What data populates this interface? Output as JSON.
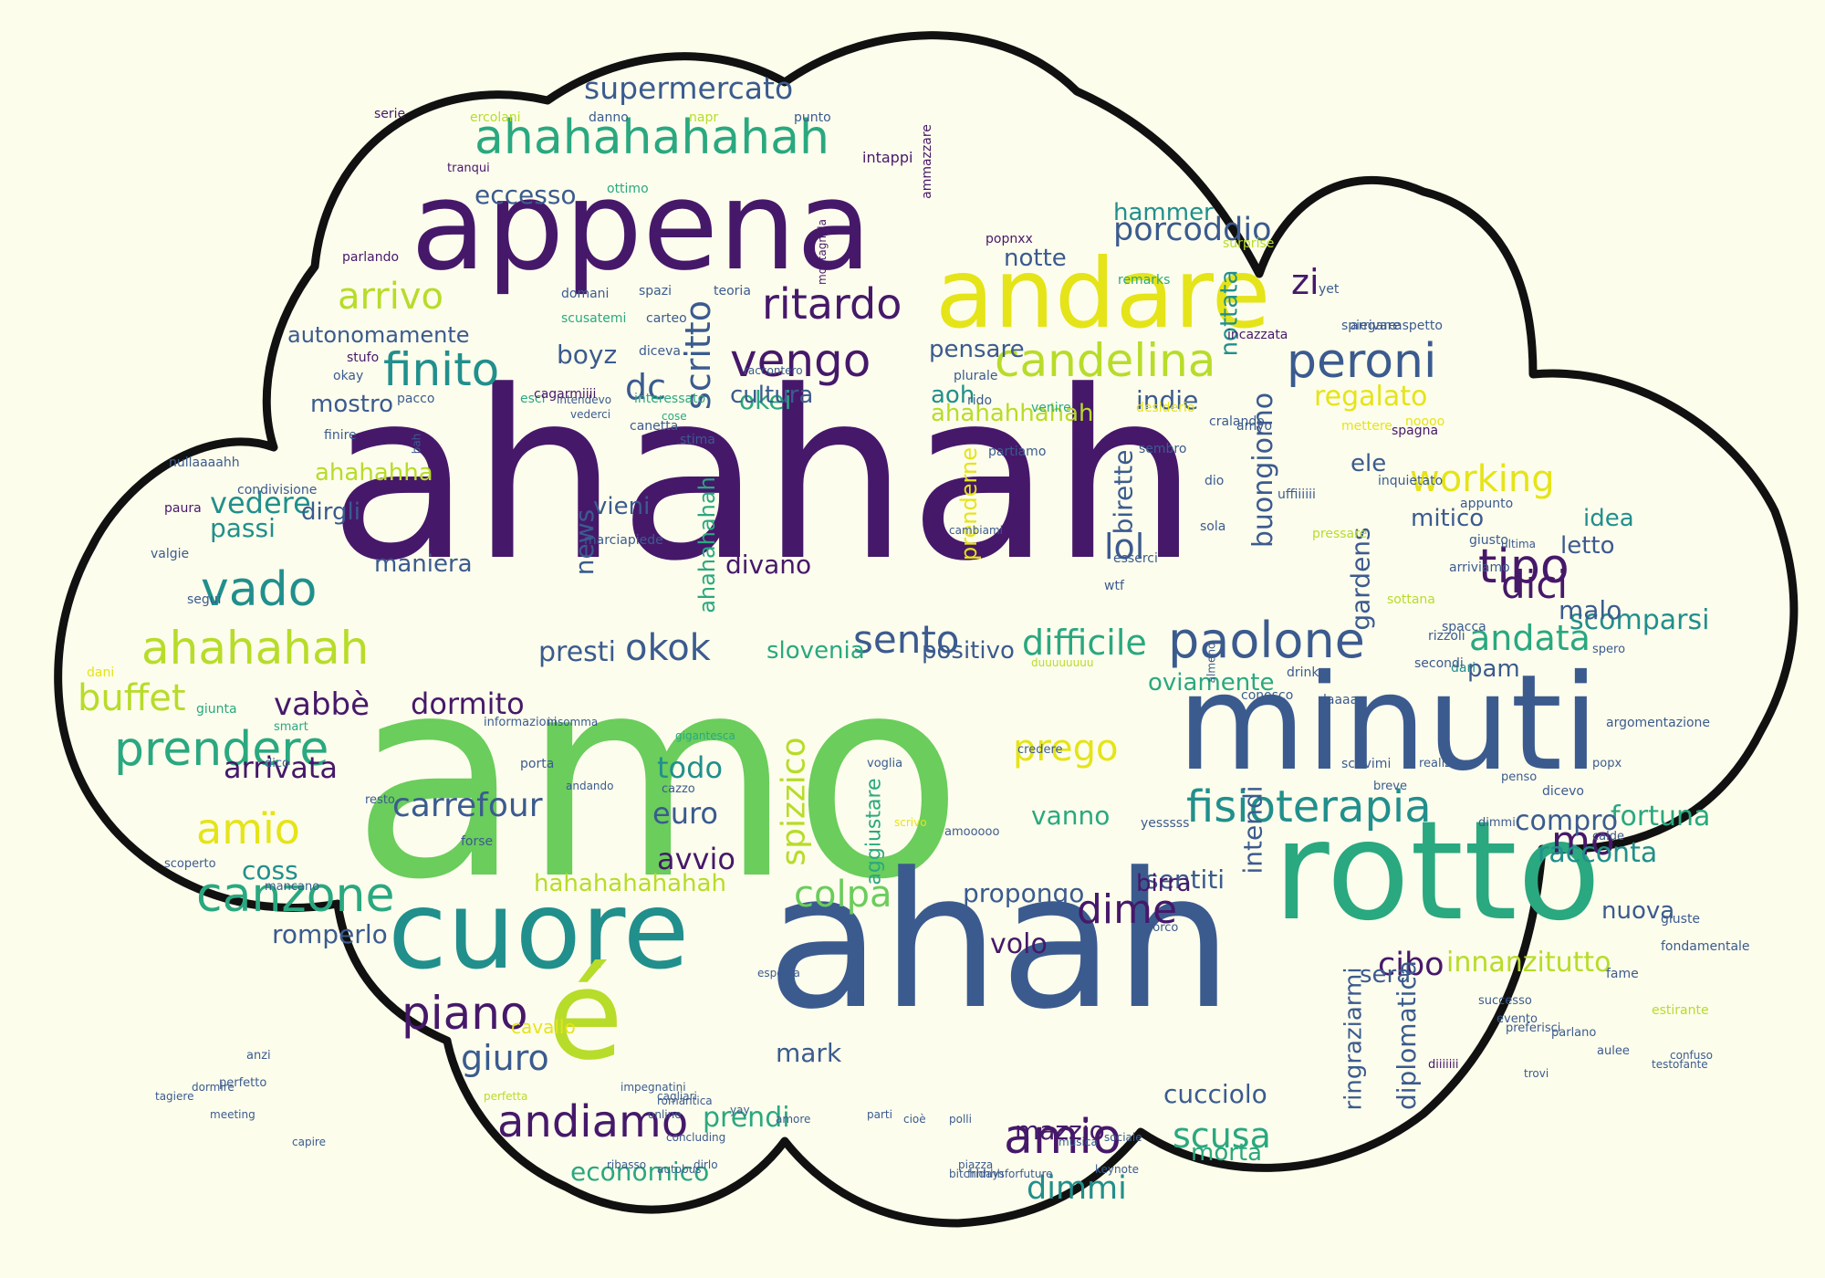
{
  "colors": {
    "background": "#fdfdec",
    "cloud_fill": "#fdfded",
    "cloud_outline": "#111111",
    "palette": [
      "#46186a",
      "#3b5b8f",
      "#218f8c",
      "#2aa880",
      "#6acd5c",
      "#b7dc29",
      "#e5e418",
      "#4a2d7c"
    ]
  },
  "words": [
    {
      "text": "amo",
      "c": "#6acd5c"
    },
    {
      "text": "ahahah",
      "c": "#46186a"
    },
    {
      "text": "ahah",
      "c": "#3b5b8f"
    },
    {
      "text": "appena",
      "c": "#46186a"
    },
    {
      "text": "minuti",
      "c": "#3b5b8f"
    },
    {
      "text": "rotto",
      "c": "#2aa880"
    },
    {
      "text": "cuore",
      "c": "#218f8c"
    },
    {
      "text": "andare",
      "c": "#e5e418"
    },
    {
      "text": "é",
      "c": "#b7dc29"
    },
    {
      "text": "ahahahahahah",
      "c": "#2aa880"
    },
    {
      "text": "candelina",
      "c": "#b7dc29"
    },
    {
      "text": "paolone",
      "c": "#3b5b8f"
    },
    {
      "text": "fisioterapia",
      "c": "#218f8c"
    },
    {
      "text": "ritardo",
      "c": "#46186a"
    },
    {
      "text": "ahahahah",
      "c": "#b7dc29"
    },
    {
      "text": "prendere",
      "c": "#2aa880"
    },
    {
      "text": "canzone",
      "c": "#2aa880"
    },
    {
      "text": "andiamo",
      "c": "#46186a"
    },
    {
      "text": "amio",
      "c": "#46186a"
    },
    {
      "text": "peroni",
      "c": "#3b5b8f"
    },
    {
      "text": "finito",
      "c": "#218f8c"
    },
    {
      "text": "vengo",
      "c": "#46186a"
    },
    {
      "text": "vado",
      "c": "#218f8c"
    },
    {
      "text": "tipo",
      "c": "#46186a"
    },
    {
      "text": "working",
      "c": "#e5e418"
    },
    {
      "text": "scritto",
      "c": "#3b5b8f"
    },
    {
      "text": "supermercato",
      "c": "#3b5b8f"
    },
    {
      "text": "porcoddio",
      "c": "#3b5b8f"
    },
    {
      "text": "piano",
      "c": "#46186a"
    },
    {
      "text": "arrivo",
      "c": "#b7dc29"
    },
    {
      "text": "okok",
      "c": "#3b5b8f"
    },
    {
      "text": "buffet",
      "c": "#b7dc29"
    },
    {
      "text": "sento",
      "c": "#3b5b8f"
    },
    {
      "text": "dici",
      "c": "#46186a"
    },
    {
      "text": "andata",
      "c": "#2aa880"
    },
    {
      "text": "colpa",
      "c": "#6acd5c"
    },
    {
      "text": "dime",
      "c": "#46186a"
    },
    {
      "text": "scusa",
      "c": "#2aa880"
    },
    {
      "text": "dimmi",
      "c": "#218f8c"
    },
    {
      "text": "giuro",
      "c": "#3b5b8f"
    },
    {
      "text": "amïo",
      "c": "#e5e418"
    },
    {
      "text": "mo",
      "c": "#46186a"
    },
    {
      "text": "cibo",
      "c": "#46186a"
    },
    {
      "text": "innanzitutto",
      "c": "#b7dc29"
    },
    {
      "text": "difficile",
      "c": "#2aa880"
    },
    {
      "text": "prego",
      "c": "#e5e418"
    },
    {
      "text": "spizzico",
      "c": "#b7dc29"
    },
    {
      "text": "lol",
      "c": "#3b5b8f"
    },
    {
      "text": "buongiorno",
      "c": "#3b5b8f"
    },
    {
      "text": "dc",
      "c": "#3b5b8f"
    },
    {
      "text": "zi",
      "c": "#46186a"
    },
    {
      "text": "vedere",
      "c": "#218f8c"
    },
    {
      "text": "ahahahhahah",
      "c": "#b7dc29"
    },
    {
      "text": "ahahahha",
      "c": "#b7dc29"
    },
    {
      "text": "aoh",
      "c": "#218f8c"
    },
    {
      "text": "prenderne",
      "c": "#e5e418"
    },
    {
      "text": "regalato",
      "c": "#e5e418"
    },
    {
      "text": "gardens",
      "c": "#3b5b8f"
    },
    {
      "text": "scomparsi",
      "c": "#218f8c"
    },
    {
      "text": "racconta",
      "c": "#218f8c"
    },
    {
      "text": "fortuna",
      "c": "#2aa880"
    },
    {
      "text": "compro",
      "c": "#3b5b8f"
    },
    {
      "text": "carrefour",
      "c": "#3b5b8f"
    },
    {
      "text": "arrivata",
      "c": "#46186a"
    },
    {
      "text": "euro",
      "c": "#3b5b8f"
    },
    {
      "text": "avvio",
      "c": "#46186a"
    },
    {
      "text": "todo",
      "c": "#218f8c"
    },
    {
      "text": "presti",
      "c": "#3b5b8f"
    },
    {
      "text": "eccesso",
      "c": "#3b5b8f"
    },
    {
      "text": "okei",
      "c": "#2aa880"
    },
    {
      "text": "divano",
      "c": "#46186a"
    },
    {
      "text": "news",
      "c": "#3b5b8f"
    },
    {
      "text": "boyz",
      "c": "#3b5b8f"
    },
    {
      "text": "cultura",
      "c": "#3b5b8f"
    },
    {
      "text": "pensare",
      "c": "#3b5b8f"
    },
    {
      "text": "notte",
      "c": "#3b5b8f"
    },
    {
      "text": "hammer",
      "c": "#218f8c"
    },
    {
      "text": "nottata",
      "c": "#218f8c"
    },
    {
      "text": "indie",
      "c": "#3b5b8f"
    },
    {
      "text": "birette",
      "c": "#3b5b8f"
    },
    {
      "text": "mitico",
      "c": "#3b5b8f"
    },
    {
      "text": "idea",
      "c": "#218f8c"
    },
    {
      "text": "letto",
      "c": "#3b5b8f"
    },
    {
      "text": "malo",
      "c": "#3b5b8f"
    },
    {
      "text": "pam",
      "c": "#3b5b8f"
    },
    {
      "text": "ele",
      "c": "#3b5b8f"
    },
    {
      "text": "oviamente",
      "c": "#2aa880"
    },
    {
      "text": "positivo",
      "c": "#3b5b8f"
    },
    {
      "text": "slovenia",
      "c": "#2aa880"
    },
    {
      "text": "dormito",
      "c": "#46186a"
    },
    {
      "text": "vabbè",
      "c": "#46186a"
    },
    {
      "text": "maniera",
      "c": "#3b5b8f"
    },
    {
      "text": "passi",
      "c": "#218f8c"
    },
    {
      "text": "dirgli",
      "c": "#3b5b8f"
    },
    {
      "text": "mostro",
      "c": "#3b5b8f"
    },
    {
      "text": "autonomamente",
      "c": "#3b5b8f"
    },
    {
      "text": "vieni",
      "c": "#3b5b8f"
    },
    {
      "text": "coss",
      "c": "#218f8c"
    },
    {
      "text": "romperlo",
      "c": "#3b5b8f"
    },
    {
      "text": "volo",
      "c": "#46186a"
    },
    {
      "text": "propongo",
      "c": "#3b5b8f"
    },
    {
      "text": "vanno",
      "c": "#2aa880"
    },
    {
      "text": "sentiti",
      "c": "#3b5b8f"
    },
    {
      "text": "birra",
      "c": "#46186a"
    },
    {
      "text": "intendi",
      "c": "#3b5b8f"
    },
    {
      "text": "nuova",
      "c": "#3b5b8f"
    },
    {
      "text": "sera",
      "c": "#3b5b8f"
    },
    {
      "text": "diplomatica",
      "c": "#3b5b8f"
    },
    {
      "text": "ringraziarmi",
      "c": "#3b5b8f"
    },
    {
      "text": "cucciolo",
      "c": "#3b5b8f"
    },
    {
      "text": "mazzio",
      "c": "#46186a"
    },
    {
      "text": "morta",
      "c": "#2aa880"
    },
    {
      "text": "prendi",
      "c": "#2aa880"
    },
    {
      "text": "economico",
      "c": "#2aa880"
    },
    {
      "text": "mark",
      "c": "#3b5b8f"
    },
    {
      "text": "hahahahahahah",
      "c": "#b7dc29"
    },
    {
      "text": "aggiustare",
      "c": "#2aa880"
    },
    {
      "text": "ahahahahah",
      "c": "#2aa880"
    },
    {
      "text": "cavallo",
      "c": "#e5e418"
    },
    {
      "text": "serie",
      "c": "#46186a"
    },
    {
      "text": "ercolani",
      "c": "#b7dc29"
    },
    {
      "text": "danno",
      "c": "#3b5b8f"
    },
    {
      "text": "napr",
      "c": "#b7dc29"
    },
    {
      "text": "punto",
      "c": "#3b5b8f"
    },
    {
      "text": "ottimo",
      "c": "#2aa880"
    },
    {
      "text": "intappi",
      "c": "#46186a"
    },
    {
      "text": "tranqui",
      "c": "#46186a"
    },
    {
      "text": "montagnola",
      "c": "#46186a"
    },
    {
      "text": "ammazzare",
      "c": "#46186a"
    },
    {
      "text": "parlando",
      "c": "#46186a"
    },
    {
      "text": "popnxx",
      "c": "#46186a"
    },
    {
      "text": "remarks",
      "c": "#2aa880"
    },
    {
      "text": "surprise",
      "c": "#b7dc29"
    },
    {
      "text": "yet",
      "c": "#3b5b8f"
    },
    {
      "text": "arrivare",
      "c": "#3b5b8f"
    },
    {
      "text": "spiegare",
      "c": "#3b5b8f"
    },
    {
      "text": "aspetto",
      "c": "#3b5b8f"
    },
    {
      "text": "incazzata",
      "c": "#46186a"
    },
    {
      "text": "domani",
      "c": "#3b5b8f"
    },
    {
      "text": "spazi",
      "c": "#3b5b8f"
    },
    {
      "text": "teoria",
      "c": "#3b5b8f"
    },
    {
      "text": "scusatemi",
      "c": "#2aa880"
    },
    {
      "text": "carteo",
      "c": "#3b5b8f"
    },
    {
      "text": "diceva",
      "c": "#3b5b8f"
    },
    {
      "text": "stufo",
      "c": "#46186a"
    },
    {
      "text": "okay",
      "c": "#3b5b8f"
    },
    {
      "text": "pacco",
      "c": "#3b5b8f"
    },
    {
      "text": "esci",
      "c": "#2aa880"
    },
    {
      "text": "interessato",
      "c": "#2aa880"
    },
    {
      "text": "raccontero",
      "c": "#3b5b8f"
    },
    {
      "text": "intendevo",
      "c": "#3b5b8f"
    },
    {
      "text": "cose",
      "c": "#2aa880"
    },
    {
      "text": "vederci",
      "c": "#3b5b8f"
    },
    {
      "text": "plurale",
      "c": "#3b5b8f"
    },
    {
      "text": "rido",
      "c": "#3b5b8f"
    },
    {
      "text": "venire",
      "c": "#2aa880"
    },
    {
      "text": "desiderio",
      "c": "#e5e418"
    },
    {
      "text": "cralando",
      "c": "#3b5b8f"
    },
    {
      "text": "amyo",
      "c": "#3b5b8f"
    },
    {
      "text": "mettere",
      "c": "#e5e418"
    },
    {
      "text": "spagna",
      "c": "#46186a"
    },
    {
      "text": "noooo",
      "c": "#e5e418"
    },
    {
      "text": "finire",
      "c": "#3b5b8f"
    },
    {
      "text": "bah",
      "c": "#3b5b8f"
    },
    {
      "text": "cagarmiiii",
      "c": "#46186a"
    },
    {
      "text": "stima",
      "c": "#3b5b8f"
    },
    {
      "text": "canetta",
      "c": "#3b5b8f"
    },
    {
      "text": "partiamo",
      "c": "#3b5b8f"
    },
    {
      "text": "sembro",
      "c": "#3b5b8f"
    },
    {
      "text": "dio",
      "c": "#3b5b8f"
    },
    {
      "text": "uffiiiiii",
      "c": "#3b5b8f"
    },
    {
      "text": "pressare",
      "c": "#b7dc29"
    },
    {
      "text": "inquietato",
      "c": "#3b5b8f"
    },
    {
      "text": "appunto",
      "c": "#3b5b8f"
    },
    {
      "text": "paura",
      "c": "#46186a"
    },
    {
      "text": "condivisione",
      "c": "#3b5b8f"
    },
    {
      "text": "nullaaaahh",
      "c": "#3b5b8f"
    },
    {
      "text": "segui",
      "c": "#3b5b8f"
    },
    {
      "text": "valgie",
      "c": "#3b5b8f"
    },
    {
      "text": "marciapiede",
      "c": "#3b5b8f"
    },
    {
      "text": "cambiami",
      "c": "#3b5b8f"
    },
    {
      "text": "esserci",
      "c": "#3b5b8f"
    },
    {
      "text": "wtf",
      "c": "#3b5b8f"
    },
    {
      "text": "sola",
      "c": "#3b5b8f"
    },
    {
      "text": "giusto",
      "c": "#3b5b8f"
    },
    {
      "text": "arriviamo",
      "c": "#3b5b8f"
    },
    {
      "text": "ultima",
      "c": "#3b5b8f"
    },
    {
      "text": "spacca",
      "c": "#3b5b8f"
    },
    {
      "text": "sottana",
      "c": "#b7dc29"
    },
    {
      "text": "spero",
      "c": "#3b5b8f"
    },
    {
      "text": "drinks",
      "c": "#3b5b8f"
    },
    {
      "text": "conosco",
      "c": "#3b5b8f"
    },
    {
      "text": "dari",
      "c": "#218f8c"
    },
    {
      "text": "laaaaa",
      "c": "#3b5b8f"
    },
    {
      "text": "secondi",
      "c": "#3b5b8f"
    },
    {
      "text": "rizzoli",
      "c": "#3b5b8f"
    },
    {
      "text": "dani",
      "c": "#e5e418"
    },
    {
      "text": "giunta",
      "c": "#2aa880"
    },
    {
      "text": "smart",
      "c": "#2aa880"
    },
    {
      "text": "credere",
      "c": "#3b5b8f"
    },
    {
      "text": "porta",
      "c": "#3b5b8f"
    },
    {
      "text": "cazzo",
      "c": "#3b5b8f"
    },
    {
      "text": "forse",
      "c": "#3b5b8f"
    },
    {
      "text": "resto",
      "c": "#3b5b8f"
    },
    {
      "text": "voglia",
      "c": "#3b5b8f"
    },
    {
      "text": "scrivimi",
      "c": "#3b5b8f"
    },
    {
      "text": "realizzare",
      "c": "#3b5b8f"
    },
    {
      "text": "breve",
      "c": "#3b5b8f"
    },
    {
      "text": "dicevo",
      "c": "#3b5b8f"
    },
    {
      "text": "argomentazione",
      "c": "#3b5b8f"
    },
    {
      "text": "scoperto",
      "c": "#3b5b8f"
    },
    {
      "text": "dico",
      "c": "#3b5b8f"
    },
    {
      "text": "duuuuuuuu",
      "c": "#b7dc29"
    },
    {
      "text": "esposta",
      "c": "#3b5b8f"
    },
    {
      "text": "andando",
      "c": "#3b5b8f"
    },
    {
      "text": "gigantesca",
      "c": "#2aa880"
    },
    {
      "text": "almeno",
      "c": "#3b5b8f"
    },
    {
      "text": "porco",
      "c": "#3b5b8f"
    },
    {
      "text": "yesssss",
      "c": "#3b5b8f"
    },
    {
      "text": "insomma",
      "c": "#3b5b8f"
    },
    {
      "text": "informazioni",
      "c": "#3b5b8f"
    },
    {
      "text": "scrivo",
      "c": "#e5e418"
    },
    {
      "text": "amooooo",
      "c": "#3b5b8f"
    },
    {
      "text": "mancano",
      "c": "#3b5b8f"
    },
    {
      "text": "dimmi",
      "c": "#3b5b8f"
    },
    {
      "text": "penso",
      "c": "#3b5b8f"
    },
    {
      "text": "popx",
      "c": "#3b5b8f"
    },
    {
      "text": "calde",
      "c": "#3b5b8f"
    },
    {
      "text": "diiiiiii",
      "c": "#46186a"
    },
    {
      "text": "successo",
      "c": "#3b5b8f"
    },
    {
      "text": "evento",
      "c": "#3b5b8f"
    },
    {
      "text": "preferisci",
      "c": "#3b5b8f"
    },
    {
      "text": "parlano",
      "c": "#3b5b8f"
    },
    {
      "text": "aulee",
      "c": "#3b5b8f"
    },
    {
      "text": "trovi",
      "c": "#3b5b8f"
    },
    {
      "text": "estirante",
      "c": "#b7dc29"
    },
    {
      "text": "fondamentale",
      "c": "#3b5b8f"
    },
    {
      "text": "giuste",
      "c": "#3b5b8f"
    },
    {
      "text": "fame",
      "c": "#3b5b8f"
    },
    {
      "text": "testofante",
      "c": "#3b5b8f"
    },
    {
      "text": "confuso",
      "c": "#3b5b8f"
    },
    {
      "text": "anzi",
      "c": "#3b5b8f"
    },
    {
      "text": "perfetto",
      "c": "#3b5b8f"
    },
    {
      "text": "meeting",
      "c": "#3b5b8f"
    },
    {
      "text": "tagiere",
      "c": "#3b5b8f"
    },
    {
      "text": "dormire",
      "c": "#3b5b8f"
    },
    {
      "text": "perfetta",
      "c": "#b7dc29"
    },
    {
      "text": "impegnatini",
      "c": "#3b5b8f"
    },
    {
      "text": "romantica",
      "c": "#3b5b8f"
    },
    {
      "text": "concluding",
      "c": "#3b5b8f"
    },
    {
      "text": "cagliari",
      "c": "#3b5b8f"
    },
    {
      "text": "online",
      "c": "#3b5b8f"
    },
    {
      "text": "yay",
      "c": "#3b5b8f"
    },
    {
      "text": "amore",
      "c": "#3b5b8f"
    },
    {
      "text": "parti",
      "c": "#3b5b8f"
    },
    {
      "text": "cioè",
      "c": "#3b5b8f"
    },
    {
      "text": "polli",
      "c": "#3b5b8f"
    },
    {
      "text": "capire",
      "c": "#3b5b8f"
    },
    {
      "text": "ribasso",
      "c": "#3b5b8f"
    },
    {
      "text": "autobus",
      "c": "#3b5b8f"
    },
    {
      "text": "dirlo",
      "c": "#3b5b8f"
    },
    {
      "text": "bitchhhhh",
      "c": "#3b5b8f"
    },
    {
      "text": "piazza",
      "c": "#3b5b8f"
    },
    {
      "text": "fridaysforfuture",
      "c": "#3b5b8f"
    },
    {
      "text": "keynote",
      "c": "#3b5b8f"
    },
    {
      "text": "sociale",
      "c": "#3b5b8f"
    },
    {
      "text": "musica",
      "c": "#3b5b8f"
    },
    {
      "text": "oki",
      "c": "#3b5b8f"
    },
    {
      "text": "contrario",
      "c": "#b7dc29"
    },
    {
      "text": "drammatico",
      "c": "#3b5b8f"
    },
    {
      "text": "passare",
      "c": "#3b5b8f"
    },
    {
      "text": "prefe",
      "c": "#3b5b8f"
    },
    {
      "text": "sofia",
      "c": "#3b5b8f"
    },
    {
      "text": "crede",
      "c": "#3b5b8f"
    },
    {
      "text": "fermato",
      "c": "#3b5b8f"
    },
    {
      "text": "isi",
      "c": "#3b5b8f"
    },
    {
      "text": "manco",
      "c": "#3b5b8f"
    },
    {
      "text": "prova",
      "c": "#3b5b8f"
    },
    {
      "text": "limiti",
      "c": "#3b5b8f"
    },
    {
      "text": "terra",
      "c": "#3b5b8f"
    },
    {
      "text": "torno",
      "c": "#3b5b8f"
    },
    {
      "text": "bici",
      "c": "#3b5b8f"
    },
    {
      "text": "verdure",
      "c": "#3b5b8f"
    },
    {
      "text": "diretto",
      "c": "#3b5b8f"
    },
    {
      "text": "porto",
      "c": "#3b5b8f"
    },
    {
      "text": "vero",
      "c": "#3b5b8f"
    },
    {
      "text": "sorpresa",
      "c": "#3b5b8f"
    },
    {
      "text": "fidate",
      "c": "#3b5b8f"
    },
    {
      "text": "gente",
      "c": "#3b5b8f"
    },
    {
      "text": "rimandato",
      "c": "#3b5b8f"
    },
    {
      "text": "pensare",
      "c": "#3b5b8f"
    },
    {
      "text": "saluti",
      "c": "#3b5b8f"
    },
    {
      "text": "prendi",
      "c": "#3b5b8f"
    }
  ]
}
